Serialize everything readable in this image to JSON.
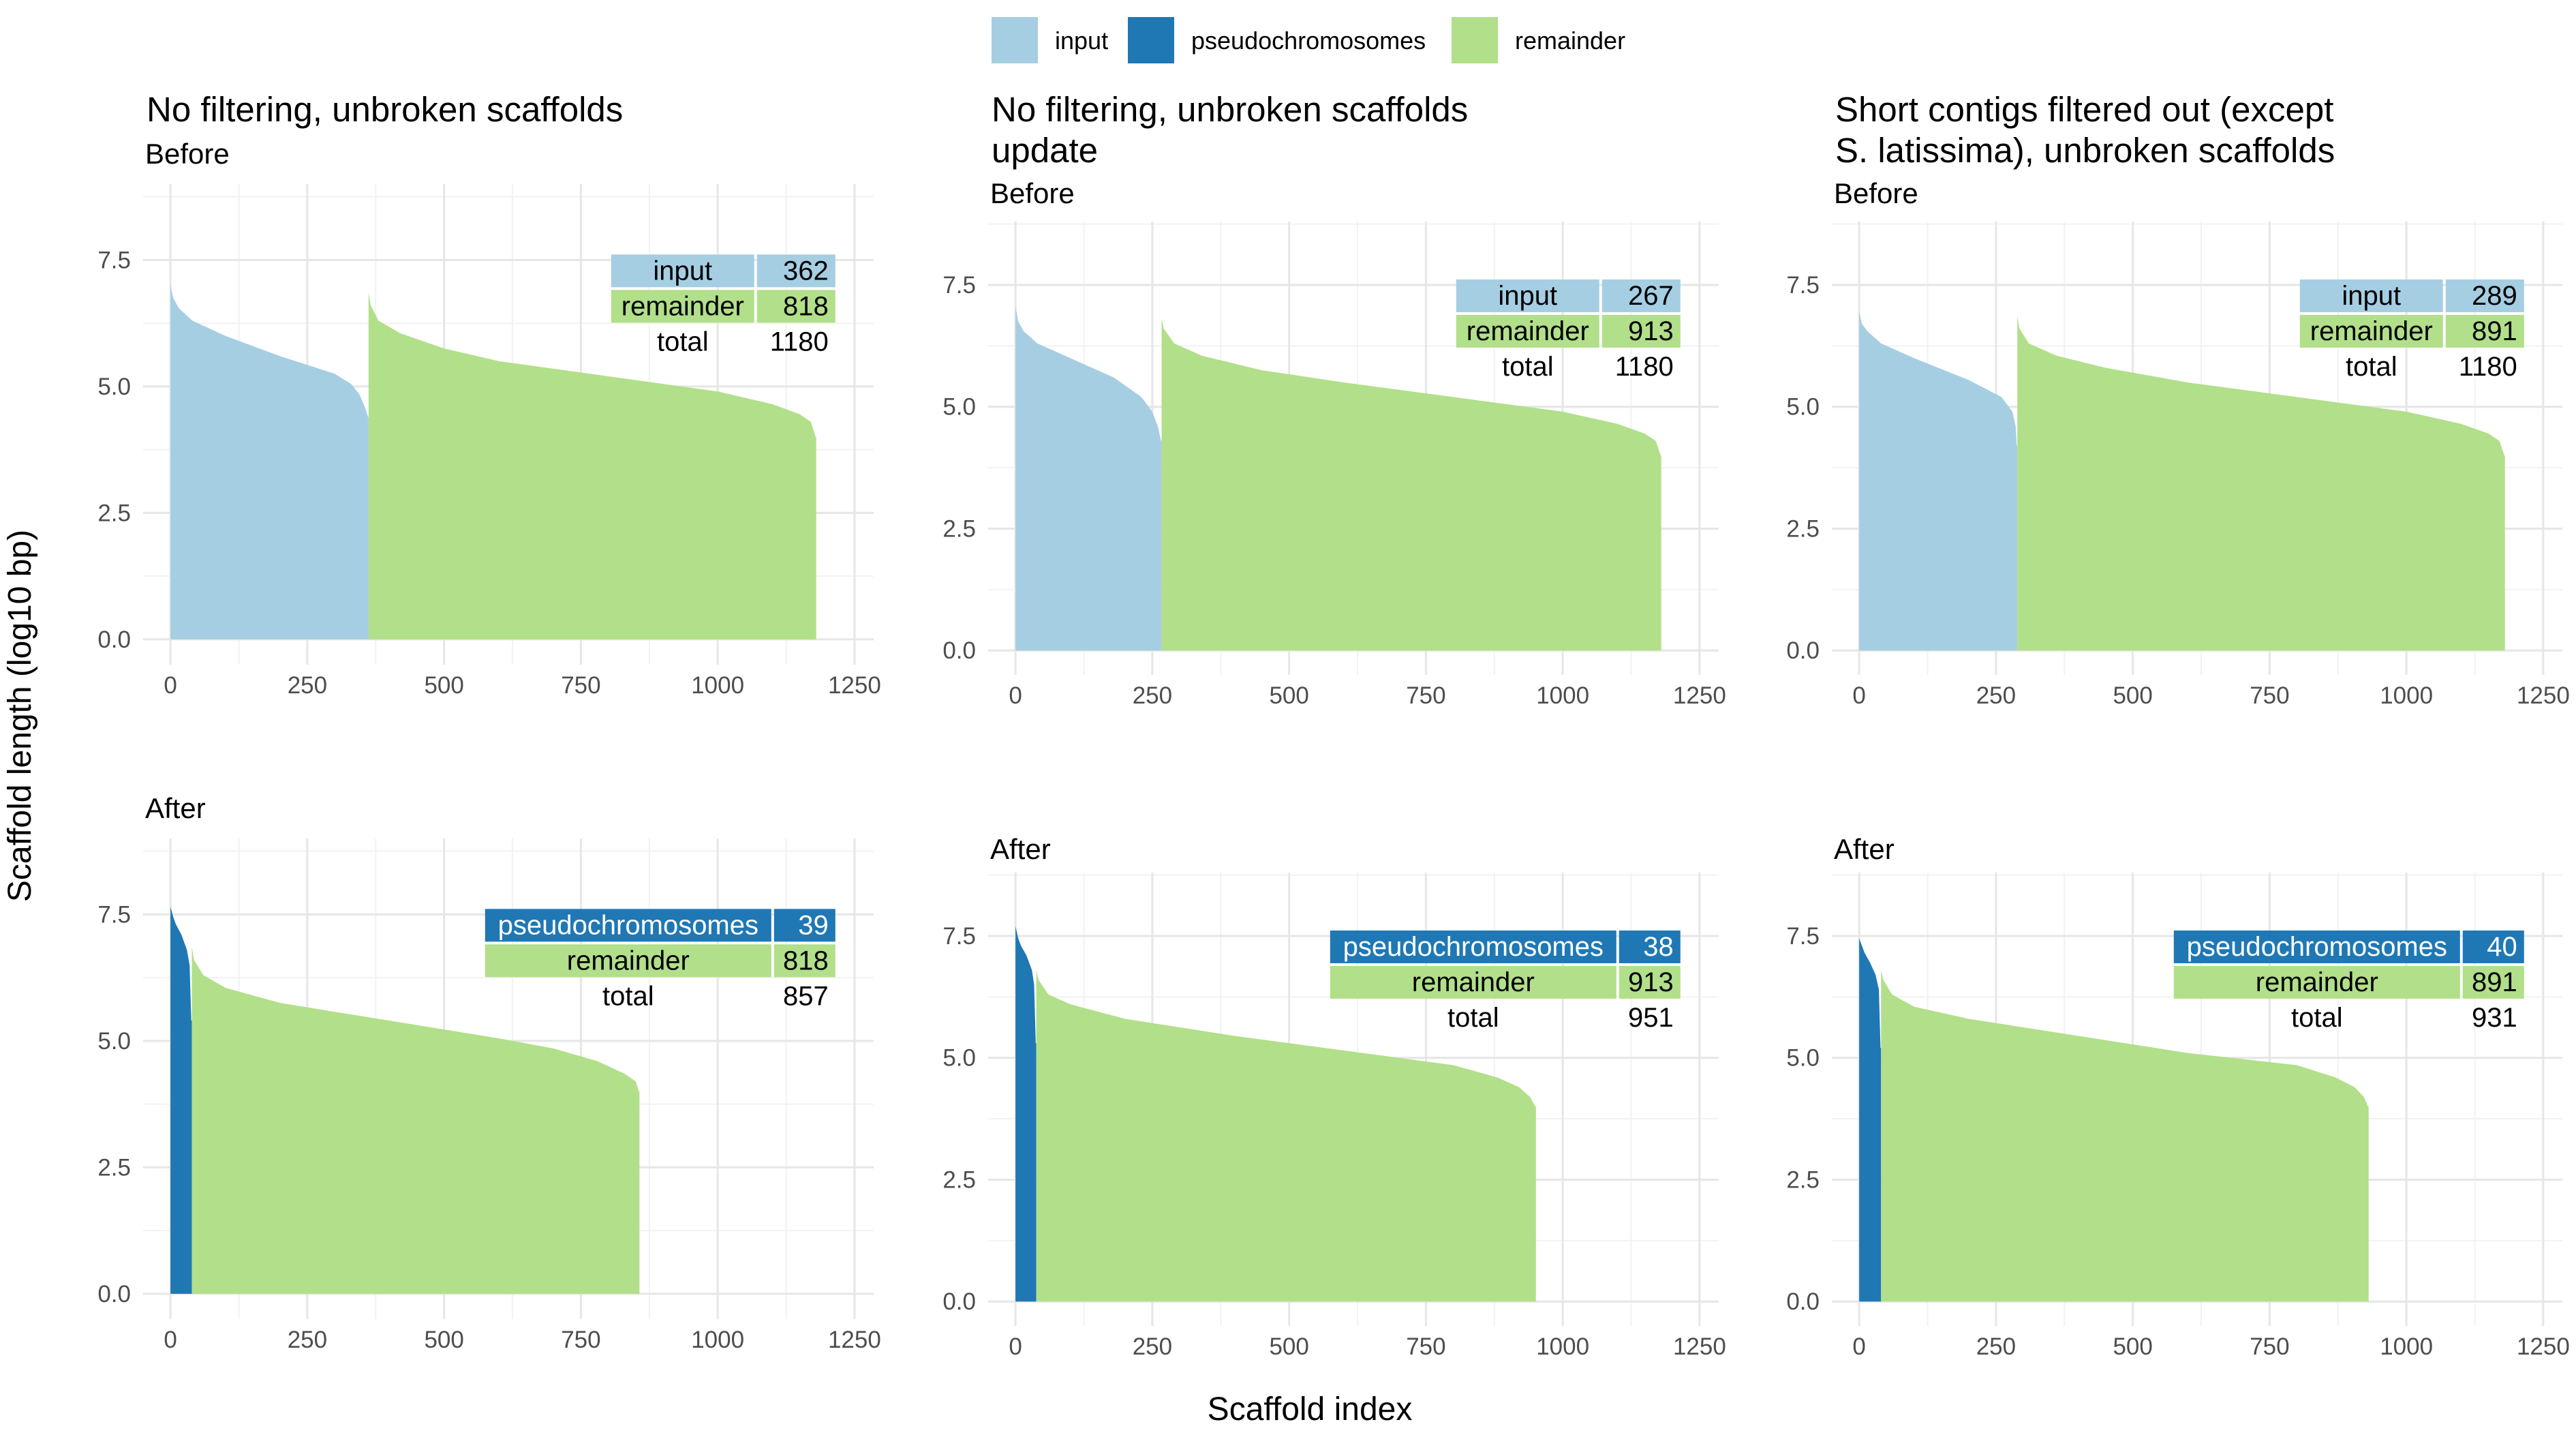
{
  "legend": {
    "items": [
      {
        "label": "input",
        "color": "#a6cee3"
      },
      {
        "label": "pseudochromosomes",
        "color": "#1f78b4"
      },
      {
        "label": "remainder",
        "color": "#b2df8a"
      }
    ]
  },
  "axes": {
    "ylabel": "Scaffold length (log10 bp)",
    "xlabel": "Scaffold index"
  },
  "chart_data": [
    {
      "type": "area",
      "title": "No filtering, unbroken scaffolds",
      "subtitle": "Before",
      "xlim": [
        -50,
        1285
      ],
      "ylim": [
        -0.5,
        9
      ],
      "x_ticks": [
        0,
        250,
        500,
        750,
        1000,
        1250
      ],
      "y_ticks": [
        0.0,
        2.5,
        5.0,
        7.5
      ],
      "x_tick_labels": [
        "0",
        "250",
        "500",
        "750",
        "1000",
        "1250"
      ],
      "y_tick_labels": [
        "0.0",
        "2.5",
        "5.0",
        "7.5"
      ],
      "series": [
        {
          "name": "input",
          "points": [
            [
              0,
              7.0
            ],
            [
              5,
              6.75
            ],
            [
              15,
              6.55
            ],
            [
              40,
              6.3
            ],
            [
              100,
              6.0
            ],
            [
              200,
              5.6
            ],
            [
              300,
              5.25
            ],
            [
              330,
              5.05
            ],
            [
              345,
              4.85
            ],
            [
              355,
              4.6
            ],
            [
              361,
              4.4
            ]
          ]
        },
        {
          "name": "remainder",
          "points": [
            [
              362,
              6.85
            ],
            [
              366,
              6.6
            ],
            [
              380,
              6.3
            ],
            [
              420,
              6.05
            ],
            [
              500,
              5.75
            ],
            [
              600,
              5.5
            ],
            [
              800,
              5.2
            ],
            [
              1000,
              4.9
            ],
            [
              1100,
              4.65
            ],
            [
              1150,
              4.45
            ],
            [
              1170,
              4.3
            ],
            [
              1179,
              4.0
            ]
          ]
        }
      ],
      "table": {
        "rows": [
          {
            "label": "input",
            "value": "362",
            "kind": "input"
          },
          {
            "label": "remainder",
            "value": "818",
            "kind": "remainder"
          },
          {
            "label": "total",
            "value": "1180",
            "kind": "total"
          }
        ]
      }
    },
    {
      "type": "area",
      "title": "No filtering, unbroken scaffolds update",
      "subtitle": "Before",
      "xlim": [
        -50,
        1285
      ],
      "ylim": [
        -0.5,
        8.8
      ],
      "x_ticks": [
        0,
        250,
        500,
        750,
        1000,
        1250
      ],
      "y_ticks": [
        0.0,
        2.5,
        5.0,
        7.5
      ],
      "x_tick_labels": [
        "0",
        "250",
        "500",
        "750",
        "1000",
        "1250"
      ],
      "y_tick_labels": [
        "0.0",
        "2.5",
        "5.0",
        "7.5"
      ],
      "series": [
        {
          "name": "input",
          "points": [
            [
              0,
              7.05
            ],
            [
              5,
              6.75
            ],
            [
              15,
              6.55
            ],
            [
              40,
              6.3
            ],
            [
              100,
              6.0
            ],
            [
              180,
              5.6
            ],
            [
              230,
              5.2
            ],
            [
              250,
              4.9
            ],
            [
              260,
              4.6
            ],
            [
              266,
              4.3
            ]
          ]
        },
        {
          "name": "remainder",
          "points": [
            [
              267,
              6.8
            ],
            [
              271,
              6.6
            ],
            [
              290,
              6.3
            ],
            [
              340,
              6.05
            ],
            [
              450,
              5.75
            ],
            [
              600,
              5.5
            ],
            [
              800,
              5.2
            ],
            [
              1000,
              4.9
            ],
            [
              1100,
              4.65
            ],
            [
              1150,
              4.45
            ],
            [
              1170,
              4.3
            ],
            [
              1179,
              4.0
            ]
          ]
        }
      ],
      "table": {
        "rows": [
          {
            "label": "input",
            "value": "267",
            "kind": "input"
          },
          {
            "label": "remainder",
            "value": "913",
            "kind": "remainder"
          },
          {
            "label": "total",
            "value": "1180",
            "kind": "total"
          }
        ]
      }
    },
    {
      "type": "area",
      "title": "Short contigs filtered out (except S. latissima), unbroken scaffolds",
      "subtitle": "Before",
      "xlim": [
        -50,
        1285
      ],
      "ylim": [
        -0.5,
        8.8
      ],
      "x_ticks": [
        0,
        250,
        500,
        750,
        1000,
        1250
      ],
      "y_ticks": [
        0.0,
        2.5,
        5.0,
        7.5
      ],
      "x_tick_labels": [
        "0",
        "250",
        "500",
        "750",
        "1000",
        "1250"
      ],
      "y_tick_labels": [
        "0.0",
        "2.5",
        "5.0",
        "7.5"
      ],
      "series": [
        {
          "name": "input",
          "points": [
            [
              0,
              6.95
            ],
            [
              5,
              6.7
            ],
            [
              15,
              6.55
            ],
            [
              40,
              6.3
            ],
            [
              100,
              6.0
            ],
            [
              200,
              5.55
            ],
            [
              260,
              5.2
            ],
            [
              280,
              4.9
            ],
            [
              286,
              4.6
            ],
            [
              288,
              4.2
            ]
          ]
        },
        {
          "name": "remainder",
          "points": [
            [
              289,
              6.85
            ],
            [
              293,
              6.6
            ],
            [
              310,
              6.3
            ],
            [
              360,
              6.05
            ],
            [
              450,
              5.8
            ],
            [
              600,
              5.5
            ],
            [
              800,
              5.2
            ],
            [
              1000,
              4.9
            ],
            [
              1100,
              4.65
            ],
            [
              1150,
              4.45
            ],
            [
              1170,
              4.3
            ],
            [
              1179,
              4.0
            ]
          ]
        }
      ],
      "table": {
        "rows": [
          {
            "label": "input",
            "value": "289",
            "kind": "input"
          },
          {
            "label": "remainder",
            "value": "891",
            "kind": "remainder"
          },
          {
            "label": "total",
            "value": "1180",
            "kind": "total"
          }
        ]
      }
    },
    {
      "type": "area",
      "title": "",
      "subtitle": "After",
      "xlim": [
        -50,
        1285
      ],
      "ylim": [
        -0.5,
        9
      ],
      "x_ticks": [
        0,
        250,
        500,
        750,
        1000,
        1250
      ],
      "y_ticks": [
        0.0,
        2.5,
        5.0,
        7.5
      ],
      "x_tick_labels": [
        "0",
        "250",
        "500",
        "750",
        "1000",
        "1250"
      ],
      "y_tick_labels": [
        "0.0",
        "2.5",
        "5.0",
        "7.5"
      ],
      "series": [
        {
          "name": "pseudochromosomes",
          "points": [
            [
              0,
              7.65
            ],
            [
              5,
              7.45
            ],
            [
              10,
              7.3
            ],
            [
              20,
              7.1
            ],
            [
              30,
              6.8
            ],
            [
              35,
              6.5
            ],
            [
              38,
              5.4
            ]
          ]
        },
        {
          "name": "remainder",
          "points": [
            [
              39,
              6.85
            ],
            [
              43,
              6.6
            ],
            [
              60,
              6.3
            ],
            [
              100,
              6.05
            ],
            [
              200,
              5.75
            ],
            [
              400,
              5.4
            ],
            [
              600,
              5.05
            ],
            [
              700,
              4.85
            ],
            [
              780,
              4.6
            ],
            [
              830,
              4.35
            ],
            [
              850,
              4.2
            ],
            [
              856,
              4.0
            ]
          ]
        }
      ],
      "table": {
        "rows": [
          {
            "label": "pseudochromosomes",
            "value": "39",
            "kind": "pseudochromosomes"
          },
          {
            "label": "remainder",
            "value": "818",
            "kind": "remainder"
          },
          {
            "label": "total",
            "value": "857",
            "kind": "total"
          }
        ]
      }
    },
    {
      "type": "area",
      "title": "",
      "subtitle": "After",
      "xlim": [
        -50,
        1285
      ],
      "ylim": [
        -0.5,
        8.8
      ],
      "x_ticks": [
        0,
        250,
        500,
        750,
        1000,
        1250
      ],
      "y_ticks": [
        0.0,
        2.5,
        5.0,
        7.5
      ],
      "x_tick_labels": [
        "0",
        "250",
        "500",
        "750",
        "1000",
        "1250"
      ],
      "y_tick_labels": [
        "0.0",
        "2.5",
        "5.0",
        "7.5"
      ],
      "series": [
        {
          "name": "pseudochromosomes",
          "points": [
            [
              0,
              7.7
            ],
            [
              5,
              7.45
            ],
            [
              10,
              7.3
            ],
            [
              20,
              7.1
            ],
            [
              30,
              6.8
            ],
            [
              34,
              6.5
            ],
            [
              37,
              5.3
            ]
          ]
        },
        {
          "name": "remainder",
          "points": [
            [
              38,
              6.8
            ],
            [
              42,
              6.6
            ],
            [
              60,
              6.3
            ],
            [
              100,
              6.1
            ],
            [
              200,
              5.8
            ],
            [
              400,
              5.45
            ],
            [
              600,
              5.15
            ],
            [
              800,
              4.85
            ],
            [
              880,
              4.6
            ],
            [
              920,
              4.4
            ],
            [
              940,
              4.2
            ],
            [
              950,
              4.0
            ]
          ]
        }
      ],
      "table": {
        "rows": [
          {
            "label": "pseudochromosomes",
            "value": "38",
            "kind": "pseudochromosomes"
          },
          {
            "label": "remainder",
            "value": "913",
            "kind": "remainder"
          },
          {
            "label": "total",
            "value": "951",
            "kind": "total"
          }
        ]
      }
    },
    {
      "type": "area",
      "title": "",
      "subtitle": "After",
      "xlim": [
        -50,
        1285
      ],
      "ylim": [
        -0.5,
        8.8
      ],
      "x_ticks": [
        0,
        250,
        500,
        750,
        1000,
        1250
      ],
      "y_ticks": [
        0.0,
        2.5,
        5.0,
        7.5
      ],
      "x_tick_labels": [
        "0",
        "250",
        "500",
        "750",
        "1000",
        "1250"
      ],
      "y_tick_labels": [
        "0.0",
        "2.5",
        "5.0",
        "7.5"
      ],
      "series": [
        {
          "name": "pseudochromosomes",
          "points": [
            [
              0,
              7.45
            ],
            [
              5,
              7.3
            ],
            [
              10,
              7.15
            ],
            [
              20,
              6.95
            ],
            [
              30,
              6.7
            ],
            [
              36,
              6.4
            ],
            [
              39,
              5.2
            ]
          ]
        },
        {
          "name": "remainder",
          "points": [
            [
              40,
              6.8
            ],
            [
              44,
              6.6
            ],
            [
              60,
              6.3
            ],
            [
              100,
              6.05
            ],
            [
              200,
              5.8
            ],
            [
              400,
              5.45
            ],
            [
              600,
              5.1
            ],
            [
              800,
              4.85
            ],
            [
              870,
              4.6
            ],
            [
              905,
              4.4
            ],
            [
              922,
              4.2
            ],
            [
              930,
              4.0
            ]
          ]
        }
      ],
      "table": {
        "rows": [
          {
            "label": "pseudochromosomes",
            "value": "40",
            "kind": "pseudochromosomes"
          },
          {
            "label": "remainder",
            "value": "891",
            "kind": "remainder"
          },
          {
            "label": "total",
            "value": "931",
            "kind": "total"
          }
        ]
      }
    }
  ]
}
